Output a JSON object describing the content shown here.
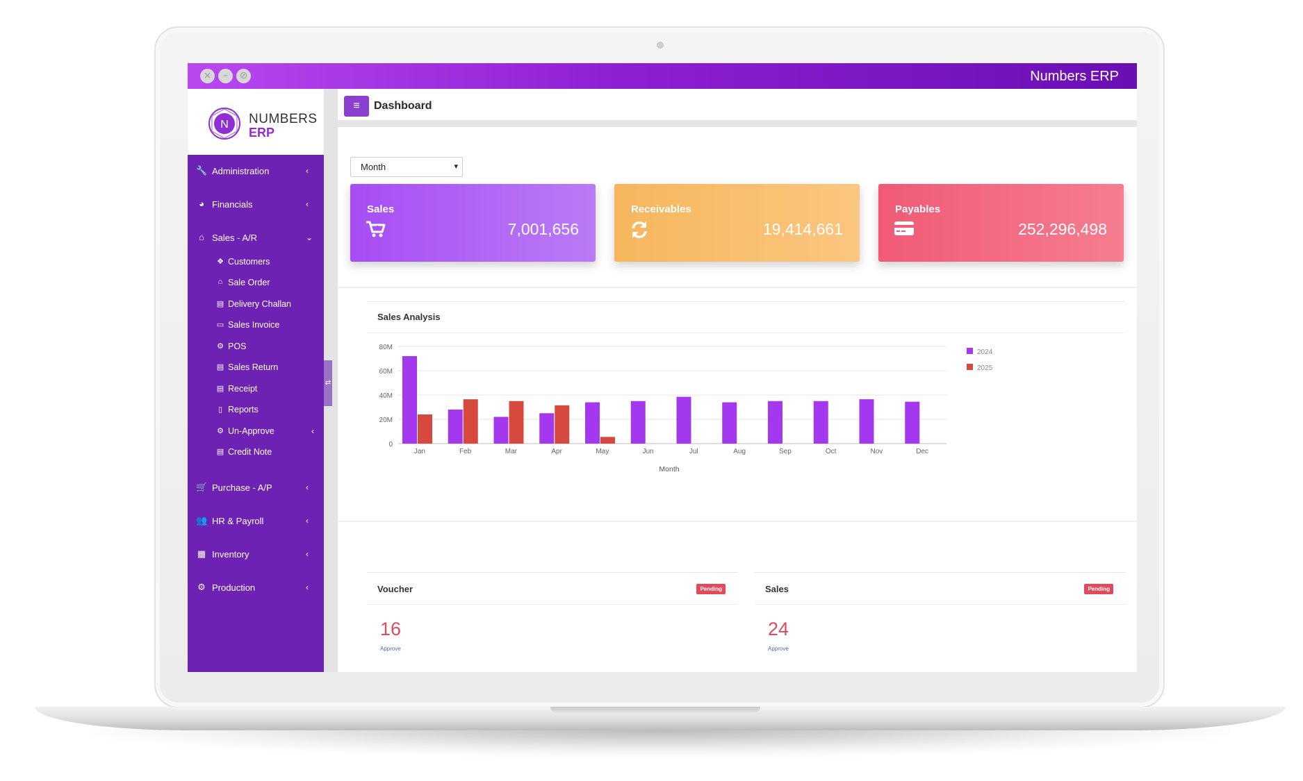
{
  "window": {
    "app_title": "Numbers ERP",
    "controls": [
      "close",
      "minimize",
      "maximize"
    ]
  },
  "logo": {
    "line1": "NUMBERS",
    "line2": "ERP",
    "mark": "N"
  },
  "header": {
    "menu_icon": "hamburger-icon",
    "title": "Dashboard"
  },
  "sidebar": {
    "items": [
      {
        "label": "Administration",
        "icon": "wrench-icon",
        "glyph": "🔧",
        "chevron": "‹"
      },
      {
        "label": "Financials",
        "icon": "pie-chart-icon",
        "glyph": "◕",
        "chevron": "‹"
      },
      {
        "label": "Sales - A/R",
        "icon": "home-icon",
        "glyph": "⌂",
        "chevron": "⌄",
        "expanded": true
      },
      {
        "label": "Purchase - A/P",
        "icon": "cart-icon",
        "glyph": "🛒",
        "chevron": "‹"
      },
      {
        "label": "HR & Payroll",
        "icon": "users-icon",
        "glyph": "👥",
        "chevron": "‹"
      },
      {
        "label": "Inventory",
        "icon": "warehouse-icon",
        "glyph": "▦",
        "chevron": "‹"
      },
      {
        "label": "Production",
        "icon": "factory-icon",
        "glyph": "⚙",
        "chevron": "‹"
      }
    ],
    "sales_submenu": [
      {
        "label": "Customers",
        "icon": "cubes-icon",
        "glyph": "❖"
      },
      {
        "label": "Sale Order",
        "icon": "bank-icon",
        "glyph": "⌂"
      },
      {
        "label": "Delivery Challan",
        "icon": "document-icon",
        "glyph": "▤"
      },
      {
        "label": "Sales Invoice",
        "icon": "invoice-icon",
        "glyph": "▭"
      },
      {
        "label": "POS",
        "icon": "cog-icon",
        "glyph": "⚙"
      },
      {
        "label": "Sales Return",
        "icon": "document-icon",
        "glyph": "▤"
      },
      {
        "label": "Receipt",
        "icon": "document-icon",
        "glyph": "▤"
      },
      {
        "label": "Reports",
        "icon": "file-icon",
        "glyph": "▯"
      },
      {
        "label": "Un-Approve",
        "icon": "cog-icon",
        "glyph": "⚙",
        "chevron": "‹"
      },
      {
        "label": "Credit Note",
        "icon": "document-icon",
        "glyph": "▤"
      }
    ]
  },
  "filters": {
    "period": "Month",
    "period_options": [
      "Month"
    ]
  },
  "kpis": {
    "sales": {
      "title": "Sales",
      "value": "7,001,656",
      "icon": "cart-plus-icon",
      "color": "#a74df3"
    },
    "receivables": {
      "title": "Receivables",
      "value": "19,414,661",
      "icon": "refresh-icon",
      "color": "#f7b65d"
    },
    "payables": {
      "title": "Payables",
      "value": "252,296,498",
      "icon": "credit-card-icon",
      "color": "#f05a77"
    }
  },
  "chart": {
    "title": "Sales Analysis"
  },
  "chart_data": {
    "type": "bar",
    "title": "Sales Analysis",
    "xlabel": "Month",
    "ylabel": "",
    "categories": [
      "Jan",
      "Feb",
      "Mar",
      "Apr",
      "May",
      "Jun",
      "Jul",
      "Aug",
      "Sep",
      "Oct",
      "Nov",
      "Dec"
    ],
    "series": [
      {
        "name": "2024",
        "color": "#a338ee",
        "values": [
          72,
          28,
          22,
          25,
          34,
          35,
          38.5,
          34,
          35,
          35,
          36.5,
          34.5
        ]
      },
      {
        "name": "2025",
        "color": "#d7483f",
        "values": [
          24,
          36.5,
          35,
          31.5,
          5.5,
          0,
          0,
          0,
          0,
          0,
          0,
          0
        ]
      }
    ],
    "yticks": [
      "0",
      "20M",
      "40M",
      "60M",
      "80M"
    ],
    "ylim": [
      0,
      80
    ],
    "legend": "top-right",
    "grid": true
  },
  "panels": {
    "voucher": {
      "title": "Voucher",
      "badge": "Pending",
      "count": "16",
      "sub": "Approve"
    },
    "sales": {
      "title": "Sales",
      "badge": "Pending",
      "count": "24",
      "sub": "Approve"
    }
  }
}
